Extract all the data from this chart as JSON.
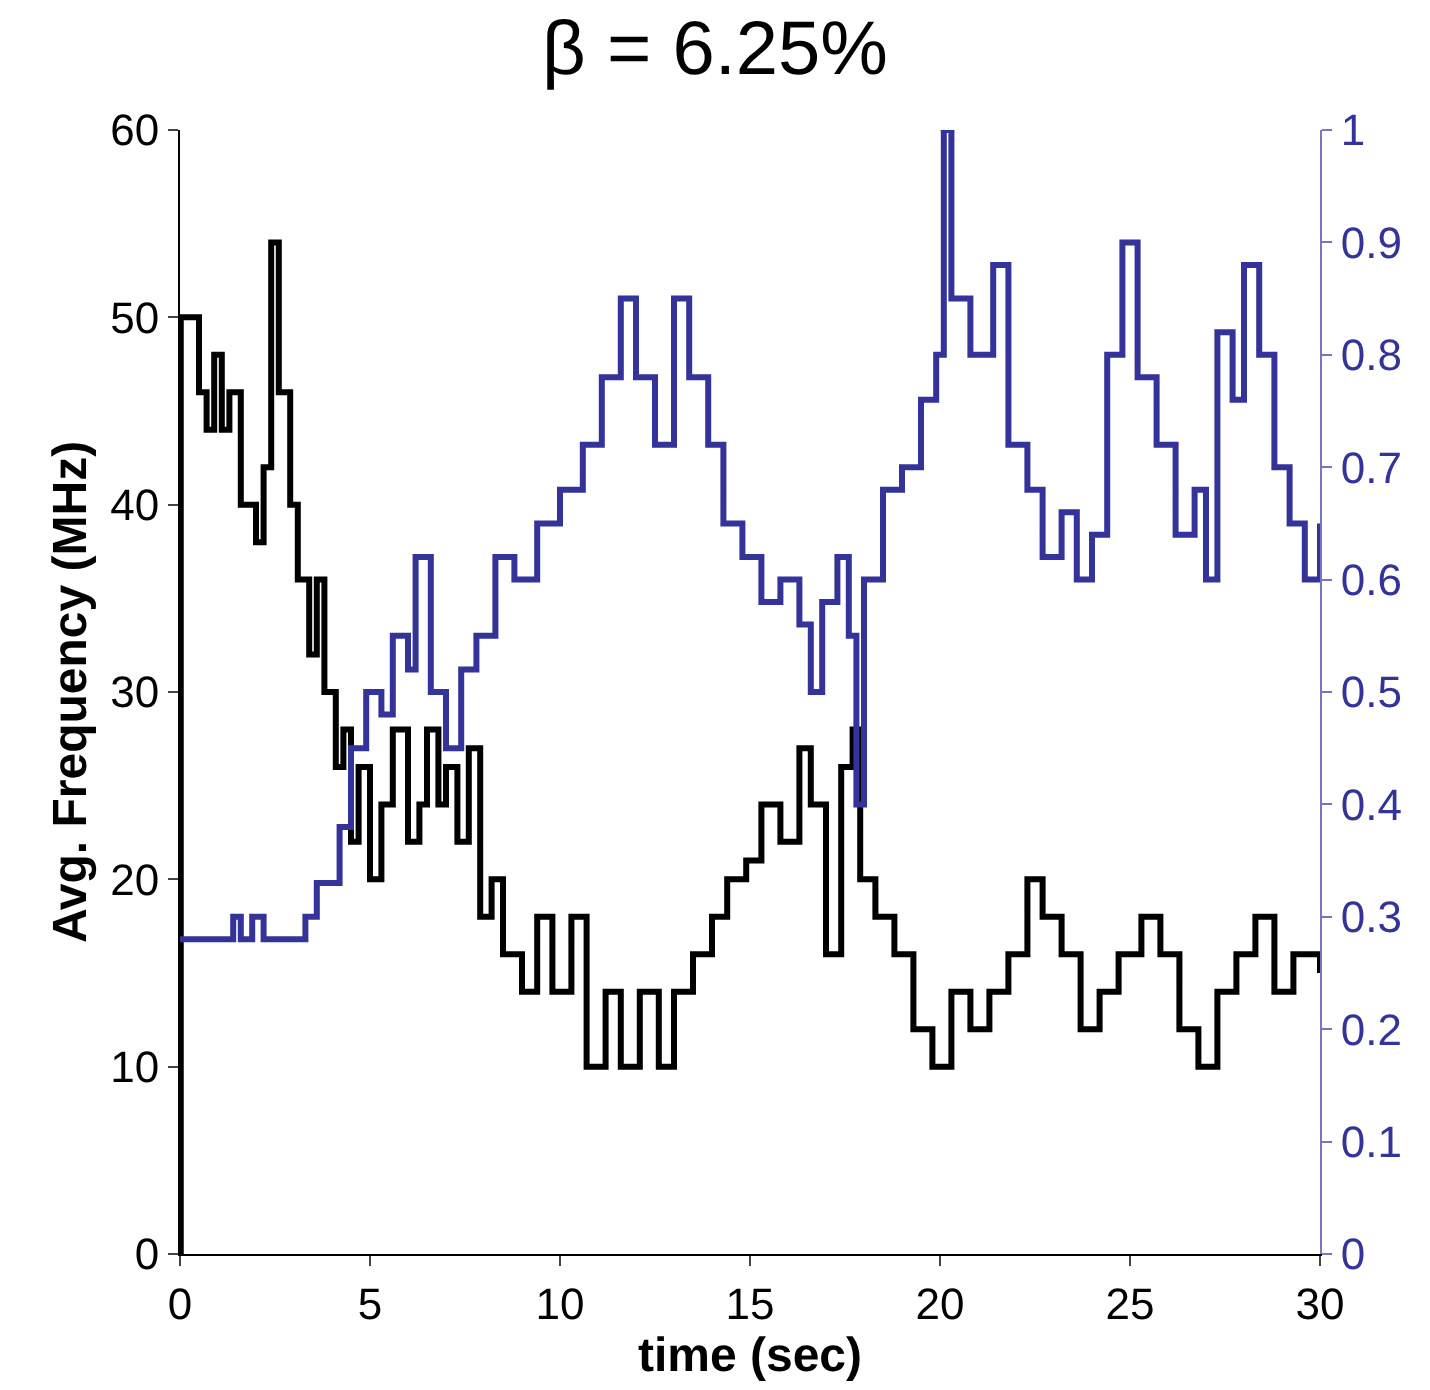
{
  "chart_data": {
    "type": "step",
    "title": "β = 6.25%",
    "xlabel": "time (sec)",
    "ylabel": "Avg. Frequency (MHz)",
    "xlim": [
      0,
      30
    ],
    "xticks": [
      0,
      5,
      10,
      15,
      20,
      25,
      30
    ],
    "ylim": [
      0,
      60
    ],
    "yticks": [
      0,
      10,
      20,
      30,
      40,
      50,
      60
    ],
    "y2lim": [
      0,
      1
    ],
    "y2ticks": [
      0,
      0.1,
      0.2,
      0.3,
      0.4,
      0.5,
      0.6,
      0.7,
      0.8,
      0.9,
      1
    ],
    "marker": "none",
    "line_style": "solid",
    "series": [
      {
        "color": "#000000",
        "x": [
          0,
          0.02,
          0.5,
          0.7,
          0.9,
          1.1,
          1.3,
          1.6,
          2.0,
          2.2,
          2.4,
          2.6,
          2.9,
          3.1,
          3.4,
          3.6,
          3.8,
          4.1,
          4.3,
          4.5,
          4.7,
          5.0,
          5.3,
          5.6,
          6.0,
          6.3,
          6.5,
          6.8,
          7.0,
          7.3,
          7.6,
          7.9,
          8.2,
          8.5,
          9.0,
          9.4,
          9.8,
          10.3,
          10.7,
          11.2,
          11.6,
          12.1,
          12.6,
          13.0,
          13.5,
          14.0,
          14.4,
          14.9,
          15.3,
          15.8,
          16.3,
          16.6,
          17.0,
          17.4,
          17.7,
          17.9,
          18.3,
          18.8,
          19.3,
          19.8,
          20.3,
          20.8,
          21.3,
          21.8,
          22.3,
          22.7,
          23.2,
          23.7,
          24.2,
          24.7,
          25.3,
          25.8,
          26.3,
          26.8,
          27.3,
          27.8,
          28.3,
          28.8,
          29.3,
          30
        ],
        "values": [
          0,
          50,
          46,
          44,
          48,
          44,
          46,
          40,
          38,
          42,
          54,
          46,
          40,
          36,
          32,
          36,
          30,
          26,
          28,
          22,
          26,
          20,
          24,
          28,
          22,
          24,
          28,
          24,
          26,
          22,
          27,
          18,
          20,
          16,
          14,
          18,
          14,
          18,
          10,
          14,
          10,
          14,
          10,
          14,
          16,
          18,
          20,
          21,
          24,
          22,
          27,
          24,
          16,
          26,
          28,
          20,
          18,
          16,
          12,
          10,
          14,
          12,
          14,
          16,
          20,
          18,
          16,
          12,
          14,
          16,
          18,
          16,
          12,
          10,
          14,
          16,
          18,
          14,
          16,
          15
        ]
      },
      {
        "color": "#333399",
        "axis": "y2",
        "x": [
          0,
          1.4,
          1.6,
          1.9,
          2.2,
          3.3,
          3.6,
          4.2,
          4.5,
          4.9,
          5.3,
          5.6,
          6.0,
          6.2,
          6.6,
          7.0,
          7.4,
          7.8,
          8.3,
          8.8,
          9.4,
          10.0,
          10.6,
          11.1,
          11.6,
          12.0,
          12.5,
          13.0,
          13.4,
          13.9,
          14.3,
          14.8,
          15.3,
          15.8,
          16.3,
          16.6,
          16.9,
          17.3,
          17.6,
          17.8,
          18.0,
          18.5,
          19.0,
          19.5,
          19.9,
          20.1,
          20.3,
          20.8,
          21.4,
          21.8,
          22.3,
          22.7,
          23.2,
          23.6,
          24.0,
          24.4,
          24.8,
          25.2,
          25.7,
          26.2,
          26.7,
          27.0,
          27.3,
          27.7,
          28.0,
          28.4,
          28.8,
          29.2,
          29.6,
          30
        ],
        "values": [
          0.28,
          0.3,
          0.28,
          0.3,
          0.28,
          0.3,
          0.33,
          0.38,
          0.45,
          0.5,
          0.48,
          0.55,
          0.52,
          0.62,
          0.5,
          0.45,
          0.52,
          0.55,
          0.62,
          0.6,
          0.65,
          0.68,
          0.72,
          0.78,
          0.85,
          0.78,
          0.72,
          0.85,
          0.78,
          0.72,
          0.65,
          0.62,
          0.58,
          0.6,
          0.56,
          0.5,
          0.58,
          0.62,
          0.55,
          0.4,
          0.6,
          0.68,
          0.7,
          0.76,
          0.8,
          1.0,
          0.85,
          0.8,
          0.88,
          0.72,
          0.68,
          0.62,
          0.66,
          0.6,
          0.64,
          0.8,
          0.9,
          0.78,
          0.72,
          0.64,
          0.68,
          0.6,
          0.82,
          0.76,
          0.88,
          0.8,
          0.7,
          0.65,
          0.6,
          0.65
        ]
      }
    ]
  }
}
